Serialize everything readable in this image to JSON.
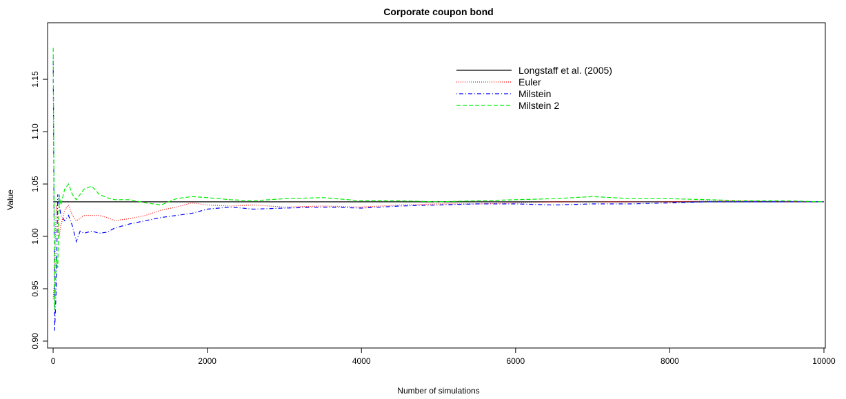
{
  "chart_data": {
    "type": "line",
    "title": "Corporate coupon bond",
    "x_label": "Number of simulations",
    "y_label": "Value",
    "x": [
      1,
      20,
      40,
      60,
      80,
      100,
      150,
      200,
      250,
      300,
      350,
      400,
      500,
      600,
      700,
      800,
      1000,
      1200,
      1400,
      1600,
      1800,
      2000,
      2300,
      2600,
      3000,
      3500,
      4000,
      4500,
      5000,
      5500,
      6000,
      6500,
      7000,
      7500,
      8000,
      8500,
      9000,
      9500,
      10000
    ],
    "series": [
      {
        "name": "Longstaff et al. (2005)",
        "color": "#000000",
        "dash": "solid",
        "values": [
          1.033,
          1.033,
          1.033,
          1.033,
          1.033,
          1.033,
          1.033,
          1.033,
          1.033,
          1.033,
          1.033,
          1.033,
          1.033,
          1.033,
          1.033,
          1.033,
          1.033,
          1.033,
          1.033,
          1.033,
          1.033,
          1.033,
          1.033,
          1.033,
          1.033,
          1.033,
          1.033,
          1.033,
          1.033,
          1.033,
          1.033,
          1.033,
          1.033,
          1.033,
          1.033,
          1.033,
          1.033,
          1.033,
          1.033
        ]
      },
      {
        "name": "Euler",
        "color": "#ff0000",
        "dash": "dotted",
        "values": [
          0.94,
          0.96,
          1.03,
          1.02,
          1.0,
          1.01,
          1.025,
          1.03,
          1.02,
          1.015,
          1.017,
          1.02,
          1.02,
          1.02,
          1.018,
          1.015,
          1.017,
          1.02,
          1.025,
          1.028,
          1.032,
          1.03,
          1.029,
          1.03,
          1.028,
          1.029,
          1.028,
          1.03,
          1.031,
          1.031,
          1.032,
          1.033,
          1.033,
          1.033,
          1.033,
          1.034,
          1.034,
          1.033,
          1.033
        ]
      },
      {
        "name": "Milstein",
        "color": "#0000ff",
        "dash": "dotdash",
        "values": [
          1.17,
          0.91,
          0.95,
          1.04,
          1.03,
          1.02,
          1.015,
          1.02,
          1.01,
          0.995,
          1.005,
          1.003,
          1.005,
          1.003,
          1.004,
          1.008,
          1.012,
          1.015,
          1.018,
          1.02,
          1.022,
          1.026,
          1.028,
          1.026,
          1.027,
          1.028,
          1.027,
          1.029,
          1.03,
          1.031,
          1.031,
          1.03,
          1.031,
          1.031,
          1.032,
          1.033,
          1.033,
          1.033,
          1.033
        ]
      },
      {
        "name": "Milstein 2",
        "color": "#00ee00",
        "dash": "dashed",
        "values": [
          1.18,
          0.93,
          0.98,
          0.97,
          1.04,
          1.03,
          1.045,
          1.05,
          1.04,
          1.035,
          1.04,
          1.045,
          1.048,
          1.04,
          1.037,
          1.035,
          1.035,
          1.032,
          1.03,
          1.036,
          1.038,
          1.037,
          1.035,
          1.034,
          1.036,
          1.037,
          1.034,
          1.034,
          1.033,
          1.034,
          1.035,
          1.036,
          1.038,
          1.036,
          1.036,
          1.035,
          1.034,
          1.034,
          1.033
        ]
      }
    ],
    "xlim": [
      -72,
      10018
    ],
    "xticks": [
      0,
      2000,
      4000,
      6000,
      8000,
      10000
    ],
    "ylim": [
      0.8934,
      1.204
    ],
    "yticks": [
      {
        "value": 0.9,
        "label": "0.90"
      },
      0.95,
      {
        "value": 1.0,
        "label": "1.00"
      },
      1.05,
      {
        "value": 1.1,
        "label": "1.10"
      },
      1.15
    ],
    "grid": false,
    "legend": "top-right"
  }
}
